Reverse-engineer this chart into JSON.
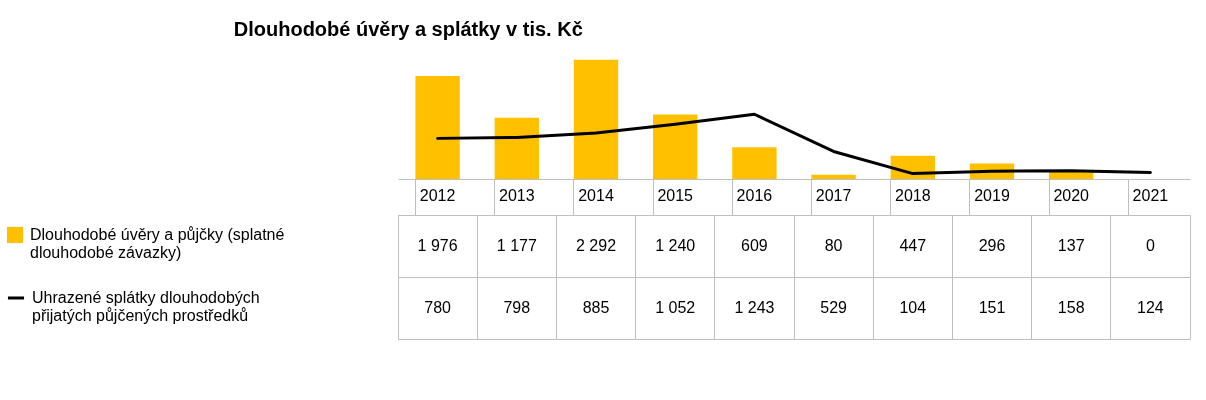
{
  "chart_data": {
    "type": "bar",
    "title": "Dlouhodobé úvěry a splátky v tis. Kč",
    "categories": [
      "2012",
      "2013",
      "2014",
      "2015",
      "2016",
      "2017",
      "2018",
      "2019",
      "2020",
      "2021"
    ],
    "series": [
      {
        "name": "Dlouhodobé úvěry a půjčky (splatné dlouhodobé závazky)",
        "color": "#ffc000",
        "values": [
          1976,
          1177,
          2292,
          1240,
          609,
          80,
          447,
          296,
          137,
          0
        ],
        "value_labels": [
          "1 976",
          "1 177",
          "2 292",
          "1 240",
          "609",
          "80",
          "447",
          "296",
          "137",
          "0"
        ]
      },
      {
        "name": "Uhrazené splátky dlouhodobých přijatých půjčených prostředků",
        "type": "line",
        "color": "#000000",
        "values": [
          780,
          798,
          885,
          1052,
          1243,
          529,
          104,
          151,
          158,
          124
        ],
        "value_labels": [
          "780",
          "798",
          "885",
          "1 052",
          "1 243",
          "529",
          "104",
          "151",
          "158",
          "124"
        ]
      }
    ],
    "legend": "left"
  }
}
